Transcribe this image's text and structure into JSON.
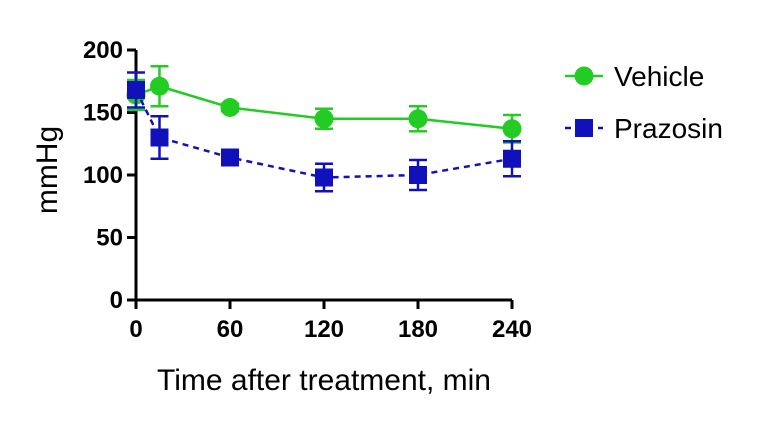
{
  "chart_data": {
    "type": "line",
    "xlabel": "Time after treatment, min",
    "ylabel": "mmHg",
    "xlim": [
      0,
      240
    ],
    "ylim": [
      0,
      200
    ],
    "xticks": [
      0,
      60,
      120,
      180,
      240
    ],
    "yticks": [
      0,
      50,
      100,
      150,
      200
    ],
    "grid": false,
    "legend_position": "right",
    "series": [
      {
        "name": "Vehicle",
        "color": "#22cc22",
        "marker": "circle",
        "line_style": "solid",
        "x": [
          0,
          15,
          60,
          120,
          180,
          240
        ],
        "y": [
          164,
          171,
          154,
          145,
          145,
          137
        ],
        "error": [
          12,
          16,
          3,
          8,
          10,
          11
        ]
      },
      {
        "name": "Prazosin",
        "color": "#1111bb",
        "marker": "square",
        "line_style": "dashed",
        "x": [
          0,
          15,
          60,
          120,
          180,
          240
        ],
        "y": [
          168,
          130,
          114,
          98,
          100,
          113
        ],
        "error": [
          14,
          17,
          4,
          11,
          12,
          14
        ]
      }
    ]
  }
}
